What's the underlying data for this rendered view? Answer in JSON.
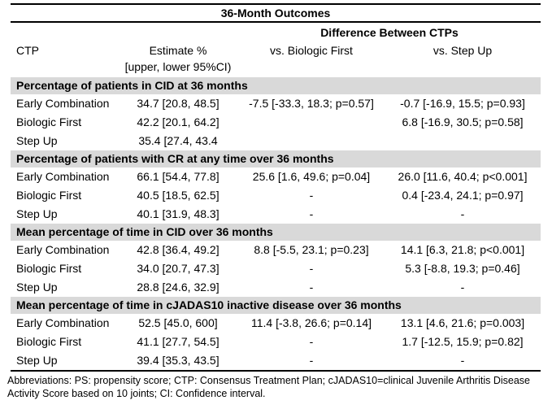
{
  "title": "36-Month Outcomes",
  "diff_header": "Difference Between CTPs",
  "columns": {
    "ctp": "CTP",
    "estimate_line1": "Estimate %",
    "estimate_line2": "[upper, lower 95%CI)",
    "vs_biologic": "vs. Biologic First",
    "vs_stepup": "vs. Step Up"
  },
  "sections": [
    {
      "header": "Percentage of patients in CID at 36 months",
      "rows": [
        {
          "ctp": "Early Combination",
          "estimate": "34.7 [20.8, 48.5]",
          "vs_biologic": "-7.5 [-33.3, 18.3; p=0.57]",
          "vs_stepup": "-0.7 [-16.9, 15.5; p=0.93]"
        },
        {
          "ctp": "Biologic First",
          "estimate": "42.2 [20.1, 64.2]",
          "vs_biologic": "",
          "vs_stepup": "6.8 [-16.9, 30.5; p=0.58]"
        },
        {
          "ctp": "Step Up",
          "estimate": "35.4 [27.4, 43.4",
          "vs_biologic": "",
          "vs_stepup": ""
        }
      ]
    },
    {
      "header": "Percentage of patients with CR at any time over 36 months",
      "rows": [
        {
          "ctp": "Early Combination",
          "estimate": "66.1 [54.4, 77.8]",
          "vs_biologic": "25.6 [1.6, 49.6; p=0.04]",
          "vs_stepup": "26.0 [11.6, 40.4; p<0.001]"
        },
        {
          "ctp": "Biologic First",
          "estimate": "40.5 [18.5, 62.5]",
          "vs_biologic": "-",
          "vs_stepup": "0.4 [-23.4, 24.1; p=0.97]"
        },
        {
          "ctp": "Step Up",
          "estimate": "40.1 [31.9, 48.3]",
          "vs_biologic": "-",
          "vs_stepup": "-"
        }
      ]
    },
    {
      "header": "Mean percentage of time in CID over 36 months",
      "rows": [
        {
          "ctp": "Early Combination",
          "estimate": "42.8 [36.4, 49.2]",
          "vs_biologic": "8.8 [-5.5, 23.1; p=0.23]",
          "vs_stepup": "14.1 [6.3, 21.8; p<0.001]"
        },
        {
          "ctp": "Biologic First",
          "estimate": "34.0 [20.7, 47.3]",
          "vs_biologic": "-",
          "vs_stepup": "5.3 [-8.8, 19.3; p=0.46]"
        },
        {
          "ctp": "Step Up",
          "estimate": "28.8 [24.6, 32.9]",
          "vs_biologic": "-",
          "vs_stepup": "-"
        }
      ]
    },
    {
      "header": "Mean percentage of time in cJADAS10 inactive disease over 36 months",
      "rows": [
        {
          "ctp": "Early Combination",
          "estimate": "52.5 [45.0, 600]",
          "vs_biologic": "11.4 [-3.8, 26.6; p=0.14]",
          "vs_stepup": "13.1 [4.6, 21.6; p=0.003]"
        },
        {
          "ctp": "Biologic First",
          "estimate": "41.1 [27.7, 54.5]",
          "vs_biologic": "-",
          "vs_stepup": "1.7 [-12.5, 15.9; p=0.82]"
        },
        {
          "ctp": "Step Up",
          "estimate": "39.4 [35.3, 43.5]",
          "vs_biologic": "-",
          "vs_stepup": "-"
        }
      ]
    }
  ],
  "footnote": "Abbreviations: PS: propensity score; CTP: Consensus Treatment Plan; cJADAS10=clinical Juvenile Arthritis Disease Activity Score based on 10 joints; CI: Confidence interval.",
  "colors": {
    "section_band": "#d9d9d9",
    "border": "#000000",
    "text": "#000000"
  }
}
